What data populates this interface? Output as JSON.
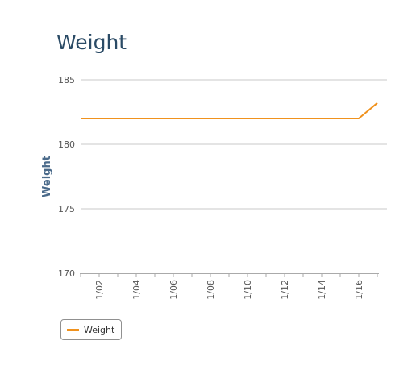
{
  "chart_data": {
    "type": "line",
    "title": "Weight",
    "xlabel": "",
    "ylabel": "Weight",
    "ylim": [
      170,
      185
    ],
    "yticks": [
      170,
      175,
      180,
      185
    ],
    "x_tick_labels": [
      "1/02",
      "1/04",
      "1/06",
      "1/08",
      "1/10",
      "1/12",
      "1/14",
      "1/16"
    ],
    "x_range": [
      "1/01",
      "1/17"
    ],
    "grid": true,
    "legend": "bottom-left",
    "series": [
      {
        "name": "Weight",
        "color": "#f0921e",
        "x": [
          "1/01",
          "1/02",
          "1/03",
          "1/04",
          "1/05",
          "1/06",
          "1/07",
          "1/08",
          "1/09",
          "1/10",
          "1/11",
          "1/12",
          "1/13",
          "1/14",
          "1/15",
          "1/16",
          "1/17"
        ],
        "y": [
          182,
          182,
          182,
          182,
          182,
          182,
          182,
          182,
          182,
          182,
          182,
          182,
          182,
          182,
          182,
          182,
          183.2
        ]
      }
    ]
  }
}
